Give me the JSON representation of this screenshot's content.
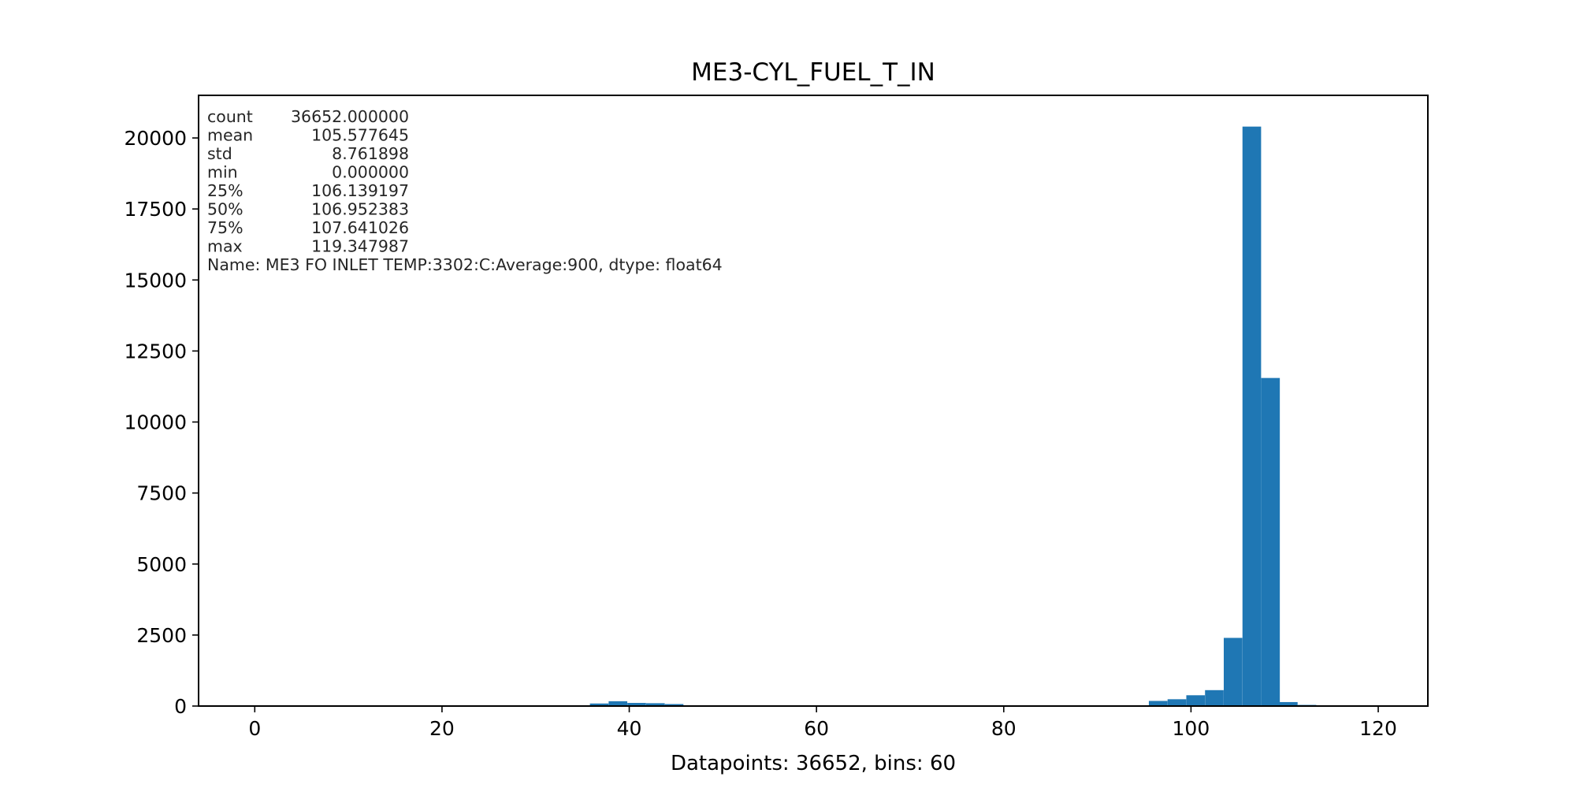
{
  "chart_data": {
    "type": "bar",
    "title": "ME3-CYL_FUEL_T_IN",
    "xlabel": "Datapoints: 36652, bins: 60",
    "ylabel": "",
    "xlim": [
      -6,
      125.3
    ],
    "ylim": [
      0,
      21500
    ],
    "x_ticks": [
      0,
      20,
      40,
      60,
      80,
      100,
      120
    ],
    "y_ticks": [
      0,
      2500,
      5000,
      7500,
      10000,
      12500,
      15000,
      17500,
      20000
    ],
    "bar_color": "#1f77b4",
    "bin_width": 1.989,
    "bins": [
      {
        "x0": 35.8,
        "count": 90
      },
      {
        "x0": 37.8,
        "count": 170
      },
      {
        "x0": 39.8,
        "count": 110
      },
      {
        "x0": 41.8,
        "count": 100
      },
      {
        "x0": 43.8,
        "count": 70
      },
      {
        "x0": 95.5,
        "count": 180
      },
      {
        "x0": 97.5,
        "count": 240
      },
      {
        "x0": 99.5,
        "count": 380
      },
      {
        "x0": 101.5,
        "count": 560
      },
      {
        "x0": 103.5,
        "count": 2400
      },
      {
        "x0": 105.5,
        "count": 20400
      },
      {
        "x0": 107.5,
        "count": 11550
      },
      {
        "x0": 109.4,
        "count": 140
      },
      {
        "x0": 111.4,
        "count": 40
      }
    ],
    "stats": [
      {
        "key": "count",
        "value": "36652.000000"
      },
      {
        "key": "mean",
        "value": "105.577645"
      },
      {
        "key": "std",
        "value": "8.761898"
      },
      {
        "key": "min",
        "value": "0.000000"
      },
      {
        "key": "25%",
        "value": "106.139197"
      },
      {
        "key": "50%",
        "value": "106.952383"
      },
      {
        "key": "75%",
        "value": "107.641026"
      },
      {
        "key": "max",
        "value": "119.347987"
      }
    ],
    "stats_footer": "Name: ME3 FO INLET TEMP:3302:C:Average:900, dtype: float64"
  }
}
